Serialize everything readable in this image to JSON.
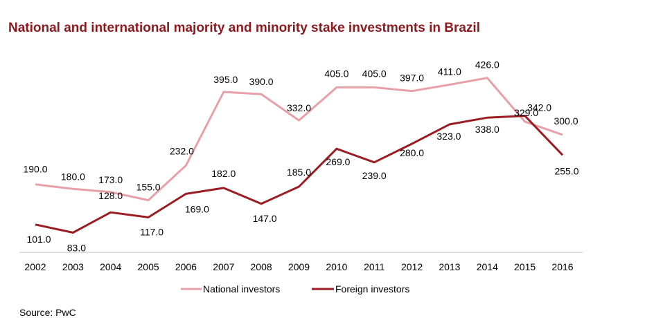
{
  "chart_data": {
    "type": "line",
    "title": "National and international majority and minority stake investments in Brazil",
    "categories": [
      "2002",
      "2003",
      "2004",
      "2005",
      "2006",
      "2007",
      "2008",
      "2009",
      "2010",
      "2011",
      "2012",
      "2013",
      "2014",
      "2015",
      "2016"
    ],
    "series": [
      {
        "name": "National investors",
        "color": "#e8a0a8",
        "values": [
          190.0,
          180.0,
          173.0,
          155.0,
          232.0,
          395.0,
          390.0,
          332.0,
          405.0,
          405.0,
          397.0,
          411.0,
          426.0,
          329.0,
          300.0
        ],
        "labels": [
          "190.0",
          "180.0",
          "173.0",
          "155.0",
          "232.0",
          "395.0",
          "390.0",
          "332.0",
          "405.0",
          "405.0",
          "397.0",
          "411.0",
          "426.0",
          "329.0",
          "300.0"
        ]
      },
      {
        "name": "Foreign investors",
        "color": "#9b1c22",
        "values": [
          101.0,
          83.0,
          128.0,
          117.0,
          169.0,
          182.0,
          147.0,
          185.0,
          269.0,
          239.0,
          280.0,
          323.0,
          338.0,
          342.0,
          255.0
        ],
        "labels": [
          "101.0",
          "83.0",
          "128.0",
          "117.0",
          "169.0",
          "182.0",
          "147.0",
          "185.0",
          "269.0",
          "239.0",
          "280.0",
          "323.0",
          "338.0",
          "342.0",
          "255.0"
        ]
      }
    ],
    "legend_position": "bottom",
    "grid": false
  },
  "source": "Source: PwC"
}
